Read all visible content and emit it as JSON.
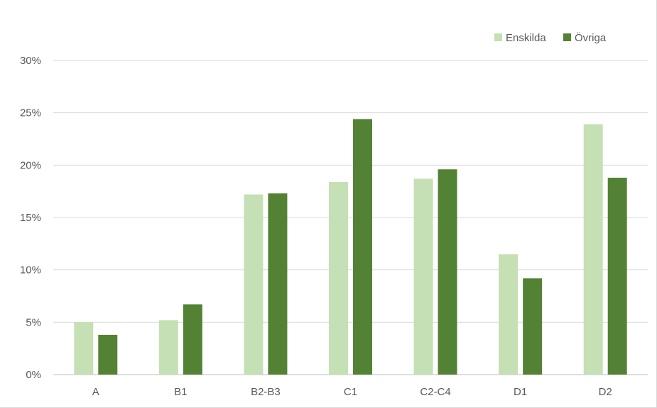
{
  "chart_data": {
    "type": "bar",
    "categories": [
      "A",
      "B1",
      "B2-B3",
      "C1",
      "C2-C4",
      "D1",
      "D2"
    ],
    "series": [
      {
        "name": "Enskilda",
        "color": "#c5e0b4",
        "values": [
          5.0,
          5.2,
          17.2,
          18.4,
          18.7,
          11.5,
          23.9
        ]
      },
      {
        "name": "Övriga",
        "color": "#548235",
        "values": [
          3.8,
          6.7,
          17.3,
          24.4,
          19.6,
          9.2,
          18.8
        ]
      }
    ],
    "yticks": [
      "0%",
      "5%",
      "10%",
      "15%",
      "20%",
      "25%",
      "30%"
    ],
    "ylim": [
      0,
      30
    ],
    "grid": true,
    "legend_position": "top-right"
  }
}
